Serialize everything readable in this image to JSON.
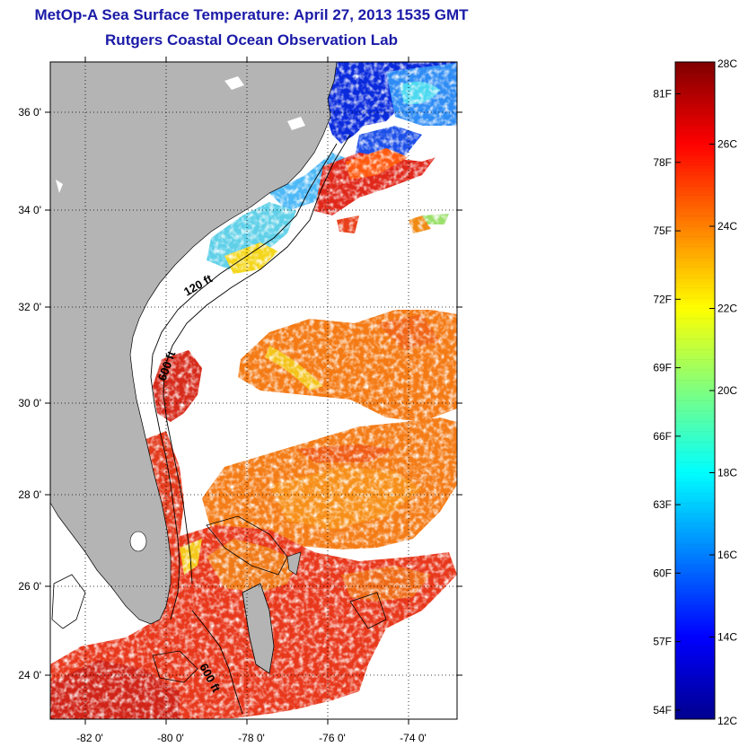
{
  "title": "MetOp-A Sea Surface Temperature:  April 27, 2013 1535 GMT",
  "subtitle": "Rutgers Coastal Ocean Observation Lab",
  "map": {
    "lat_ticks": [
      "36 0'",
      "34 0'",
      "32 0'",
      "30 0'",
      "28 0'",
      "26 0'",
      "24 0'"
    ],
    "lon_ticks": [
      "-82 0'",
      "-80 0'",
      "-78 0'",
      "-76 0'",
      "-74 0'"
    ],
    "contour_labels": [
      "120 ft",
      "600 ft",
      "600 ft"
    ],
    "land_color": "#b4b4b4",
    "no_data_color": "#ffffff"
  },
  "colorbar": {
    "celsius_labels": [
      "28C",
      "26C",
      "24C",
      "22C",
      "20C",
      "18C",
      "16C",
      "14C",
      "12C"
    ],
    "fahrenheit_labels": [
      "81F",
      "78F",
      "75F",
      "72F",
      "69F",
      "66F",
      "63F",
      "60F",
      "57F",
      "54F"
    ],
    "min_c": 12,
    "max_c": 28
  }
}
